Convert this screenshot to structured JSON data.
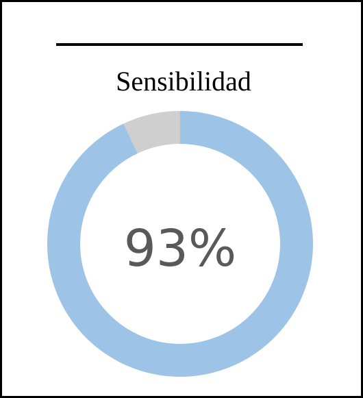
{
  "chart_data": {
    "type": "pie",
    "variant": "doughnut",
    "title": "Sensibilidad",
    "center_label": "93%",
    "slices": [
      {
        "name": "",
        "value": 93,
        "color": "#9dc3e6"
      },
      {
        "name": "",
        "value": 7,
        "color": "#d0cfcf"
      }
    ],
    "start_angle_deg": 0,
    "direction": "clockwise"
  }
}
